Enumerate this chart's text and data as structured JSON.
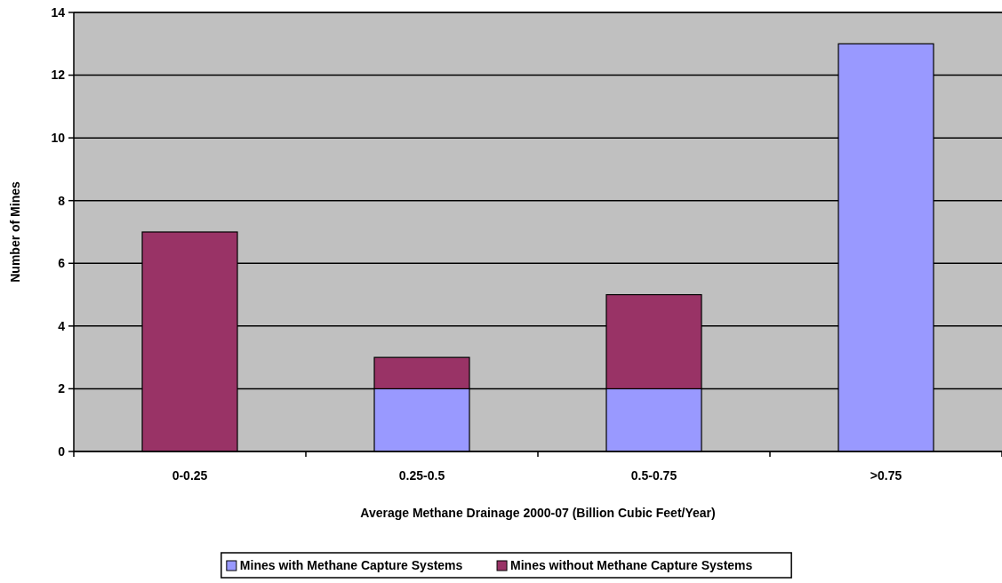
{
  "chart_data": {
    "type": "bar",
    "stacked": true,
    "xlabel": "Average Methane Drainage 2000-07 (Billion Cubic Feet/Year)",
    "ylabel": "Number of Mines",
    "categories": [
      "0-0.25",
      "0.25-0.5",
      "0.5-0.75",
      ">0.75"
    ],
    "series": [
      {
        "name": "Mines with Methane Capture Systems",
        "color": "#9999ff",
        "values": [
          0,
          2,
          2,
          13
        ]
      },
      {
        "name": "Mines without Methane Capture Systems",
        "color": "#993366",
        "values": [
          7,
          1,
          3,
          0
        ]
      }
    ],
    "ylim": [
      0,
      14
    ],
    "yticks": [
      0,
      2,
      4,
      6,
      8,
      10,
      12,
      14
    ],
    "grid": "y",
    "legend": "bottom"
  }
}
